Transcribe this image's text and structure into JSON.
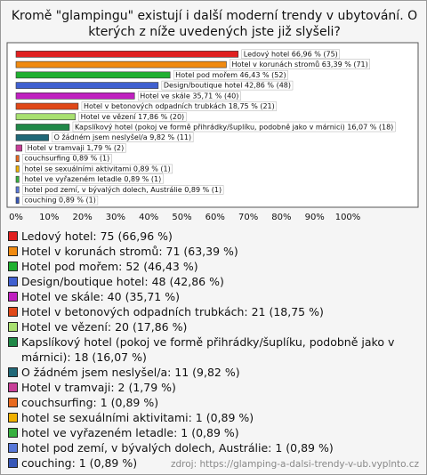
{
  "chart_data": {
    "type": "bar",
    "orientation": "horizontal",
    "title": "Kromě \"glampingu\" existují i další moderní trendy v ubytování. O kterých z níže uvedených jste již slyšeli?",
    "values": [
      66.96,
      63.39,
      46.43,
      42.86,
      35.71,
      18.75,
      17.86,
      16.07,
      9.82,
      1.79,
      0.89,
      0.89,
      0.89,
      0.89,
      0.89
    ],
    "value_labels": [
      "Ledový hotel 66,96 % (75)",
      "Hotel v korunách stromů 63,39 % (71)",
      "Hotel pod mořem 46,43 % (52)",
      "Design/boutique hotel 42,86 % (48)",
      "Hotel ve skále 35,71 % (40)",
      "Hotel v betonových odpadních trubkách 18,75 % (21)",
      "Hotel ve vězení 17,86 % (20)",
      "Kapslíkový hotel (pokoj ve formě přihrádky/šuplíku, podobně jako v márnici) 16,07 % (18)",
      "O žádném jsem neslyšel/a 9,82 % (11)",
      "Hotel v tramvaji 1,79 % (2)",
      "couchsurfing 0,89 % (1)",
      "hotel se sexuálními aktivitami 0,89 % (1)",
      "hotel ve vyřazeném letadle 0,89 % (1)",
      "hotel pod zemí, v bývalých dolech, Austrálie 0,89 % (1)",
      "couching 0,89 % (1)"
    ],
    "legend_labels": [
      "Ledový hotel: 75 (66,96 %)",
      "Hotel v korunách stromů: 71 (63,39 %)",
      "Hotel pod mořem: 52 (46,43 %)",
      "Design/boutique hotel: 48 (42,86 %)",
      "Hotel ve skále: 40 (35,71 %)",
      "Hotel v betonových odpadních trubkách: 21 (18,75 %)",
      "Hotel ve vězení: 20 (17,86 %)",
      "Kapslíkový hotel (pokoj ve formě přihrádky/šuplíku, podobně jako v márnici): 18 (16,07 %)",
      "O žádném jsem neslyšel/a: 11 (9,82 %)",
      "Hotel v tramvaji: 2 (1,79 %)",
      "couchsurfing: 1 (0,89 %)",
      "hotel se sexuálními aktivitami: 1 (0,89 %)",
      "hotel ve vyřazeném letadle: 1 (0,89 %)",
      "hotel pod zemí, v bývalých dolech, Austrálie: 1 (0,89 %)",
      "couching: 1 (0,89 %)"
    ],
    "colors": [
      "#e02020",
      "#f08a10",
      "#20b030",
      "#4060d0",
      "#c020c0",
      "#e04818",
      "#a8e070",
      "#208848",
      "#206878",
      "#c84098",
      "#e86a20",
      "#f0b000",
      "#38b040",
      "#5878d8",
      "#3858b8"
    ],
    "xlim": [
      0,
      100
    ],
    "xticks": [
      {
        "value": 0,
        "label": "0%"
      },
      {
        "value": 10,
        "label": "10%"
      },
      {
        "value": 20,
        "label": "20%"
      },
      {
        "value": 30,
        "label": "30%"
      },
      {
        "value": 40,
        "label": "40%"
      },
      {
        "value": 50,
        "label": "50%"
      },
      {
        "value": 60,
        "label": "60%"
      },
      {
        "value": 70,
        "label": "70%"
      },
      {
        "value": 80,
        "label": "80%"
      },
      {
        "value": 90,
        "label": "90%"
      },
      {
        "value": 100,
        "label": "100%"
      }
    ],
    "grid": false,
    "source": "zdroj: https://glamping-a-dalsi-trendy-v-ub.vyplnto.cz"
  }
}
